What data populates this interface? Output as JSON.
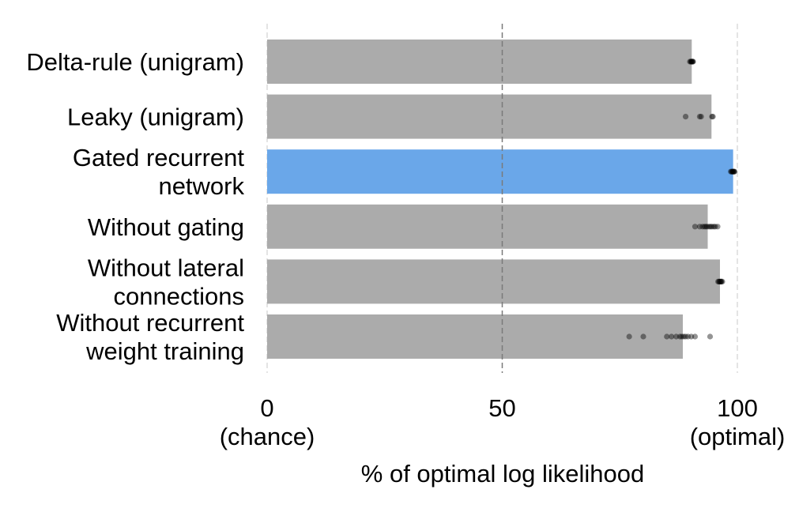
{
  "chart_data": {
    "type": "bar",
    "orientation": "horizontal",
    "xlabel": "% of optimal log likelihood",
    "xlim": [
      0,
      100
    ],
    "grid": true,
    "xticks": [
      {
        "value": 0,
        "label": "0",
        "sublabel": "(chance)"
      },
      {
        "value": 50,
        "label": "50",
        "sublabel": ""
      },
      {
        "value": 100,
        "label": "100",
        "sublabel": "(optimal)"
      }
    ],
    "bar_color": "#ababab",
    "highlight_color": "#6aa7e9",
    "categories": [
      {
        "lines": [
          "Delta-rule (unigram)"
        ],
        "value": 90.3,
        "highlight": false,
        "points": [
          89.9,
          90.1,
          90.2,
          90.3,
          90.4,
          90.5,
          90.6
        ]
      },
      {
        "lines": [
          "Leaky (unigram)"
        ],
        "value": 94.5,
        "highlight": false,
        "points": [
          89.0,
          92.0,
          92.3,
          94.6,
          94.8
        ]
      },
      {
        "lines": [
          "Gated recurrent",
          "network"
        ],
        "value": 99.1,
        "highlight": true,
        "points": [
          98.6,
          98.8,
          98.9,
          99.0,
          99.1,
          99.2,
          99.3,
          99.4
        ]
      },
      {
        "lines": [
          "Without gating"
        ],
        "value": 93.7,
        "highlight": false,
        "points": [
          91.0,
          92.0,
          92.6,
          93.0,
          93.3,
          93.6,
          94.0,
          94.3,
          94.6,
          95.0,
          95.3,
          95.8
        ]
      },
      {
        "lines": [
          "Without lateral",
          "connections"
        ],
        "value": 96.3,
        "highlight": false,
        "points": [
          95.9,
          96.1,
          96.2,
          96.4,
          96.5,
          96.6,
          96.8
        ]
      },
      {
        "lines": [
          "Without recurrent",
          "weight training"
        ],
        "value": 88.4,
        "highlight": false,
        "points": [
          77.0,
          80.0,
          85.0,
          86.0,
          87.0,
          87.8,
          88.2,
          88.6,
          89.0,
          89.5,
          90.2,
          91.0,
          94.2
        ]
      }
    ]
  }
}
